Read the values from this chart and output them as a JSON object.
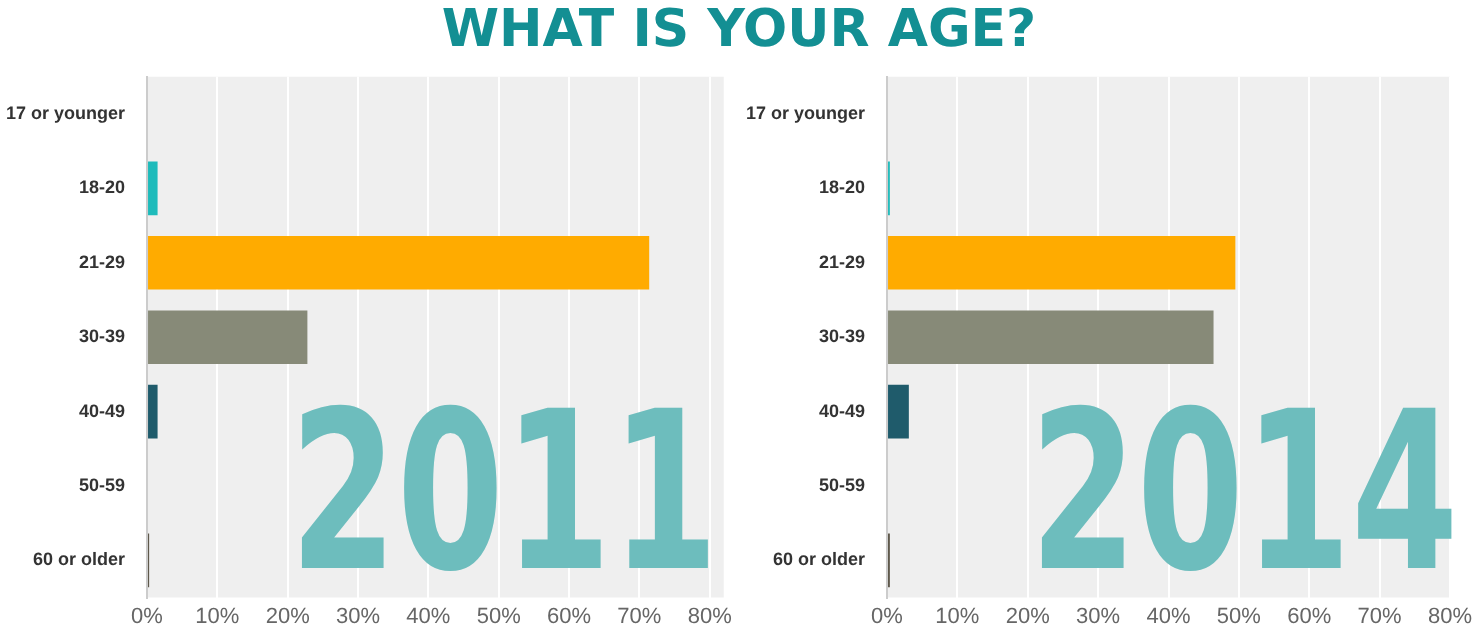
{
  "chart_data": [
    {
      "type": "bar",
      "orientation": "horizontal",
      "title": "WHAT IS YOUR AGE?",
      "categories": [
        "17 or younger",
        "18-20",
        "21-29",
        "30-39",
        "40-49",
        "50-59",
        "60 or older"
      ],
      "values": [
        0,
        1.5,
        71.4,
        22.8,
        1.5,
        0,
        0.3
      ],
      "colors": [
        "#1ebbbb",
        "#1ebbbb",
        "#ffab00",
        "#878a78",
        "#1f5b6b",
        "#5a5446",
        "#5a5446"
      ],
      "xlim": [
        0,
        82
      ],
      "xticks": [
        {
          "value": 0,
          "label": "0%"
        },
        {
          "value": 10,
          "label": "10%"
        },
        {
          "value": 20,
          "label": "20%"
        },
        {
          "value": 30,
          "label": "30%"
        },
        {
          "value": 40,
          "label": "40%"
        },
        {
          "value": 50,
          "label": "50%"
        },
        {
          "value": 60,
          "label": "60%"
        },
        {
          "value": 70,
          "label": "70%"
        },
        {
          "value": 80,
          "label": "80%"
        }
      ],
      "grid": "x",
      "legend": false,
      "annotations": [
        "2011"
      ]
    },
    {
      "type": "bar",
      "orientation": "horizontal",
      "categories": [
        "17 or younger",
        "18-20",
        "21-29",
        "30-39",
        "40-49",
        "50-59",
        "60 or older"
      ],
      "values": [
        0,
        0.4,
        49.5,
        46.4,
        3.1,
        0,
        0.4
      ],
      "colors": [
        "#1ebbbb",
        "#1ebbbb",
        "#ffab00",
        "#878a78",
        "#1f5b6b",
        "#5a5446",
        "#5a5446"
      ],
      "xlim": [
        0,
        80
      ],
      "xticks": [
        {
          "value": 0,
          "label": "0%"
        },
        {
          "value": 10,
          "label": "10%"
        },
        {
          "value": 20,
          "label": "20%"
        },
        {
          "value": 30,
          "label": "30%"
        },
        {
          "value": 40,
          "label": "40%"
        },
        {
          "value": 50,
          "label": "50%"
        },
        {
          "value": 60,
          "label": "60%"
        },
        {
          "value": 70,
          "label": "70%"
        },
        {
          "value": 80,
          "label": "80%"
        }
      ],
      "grid": "x",
      "legend": false,
      "annotations": [
        "2014"
      ]
    }
  ]
}
